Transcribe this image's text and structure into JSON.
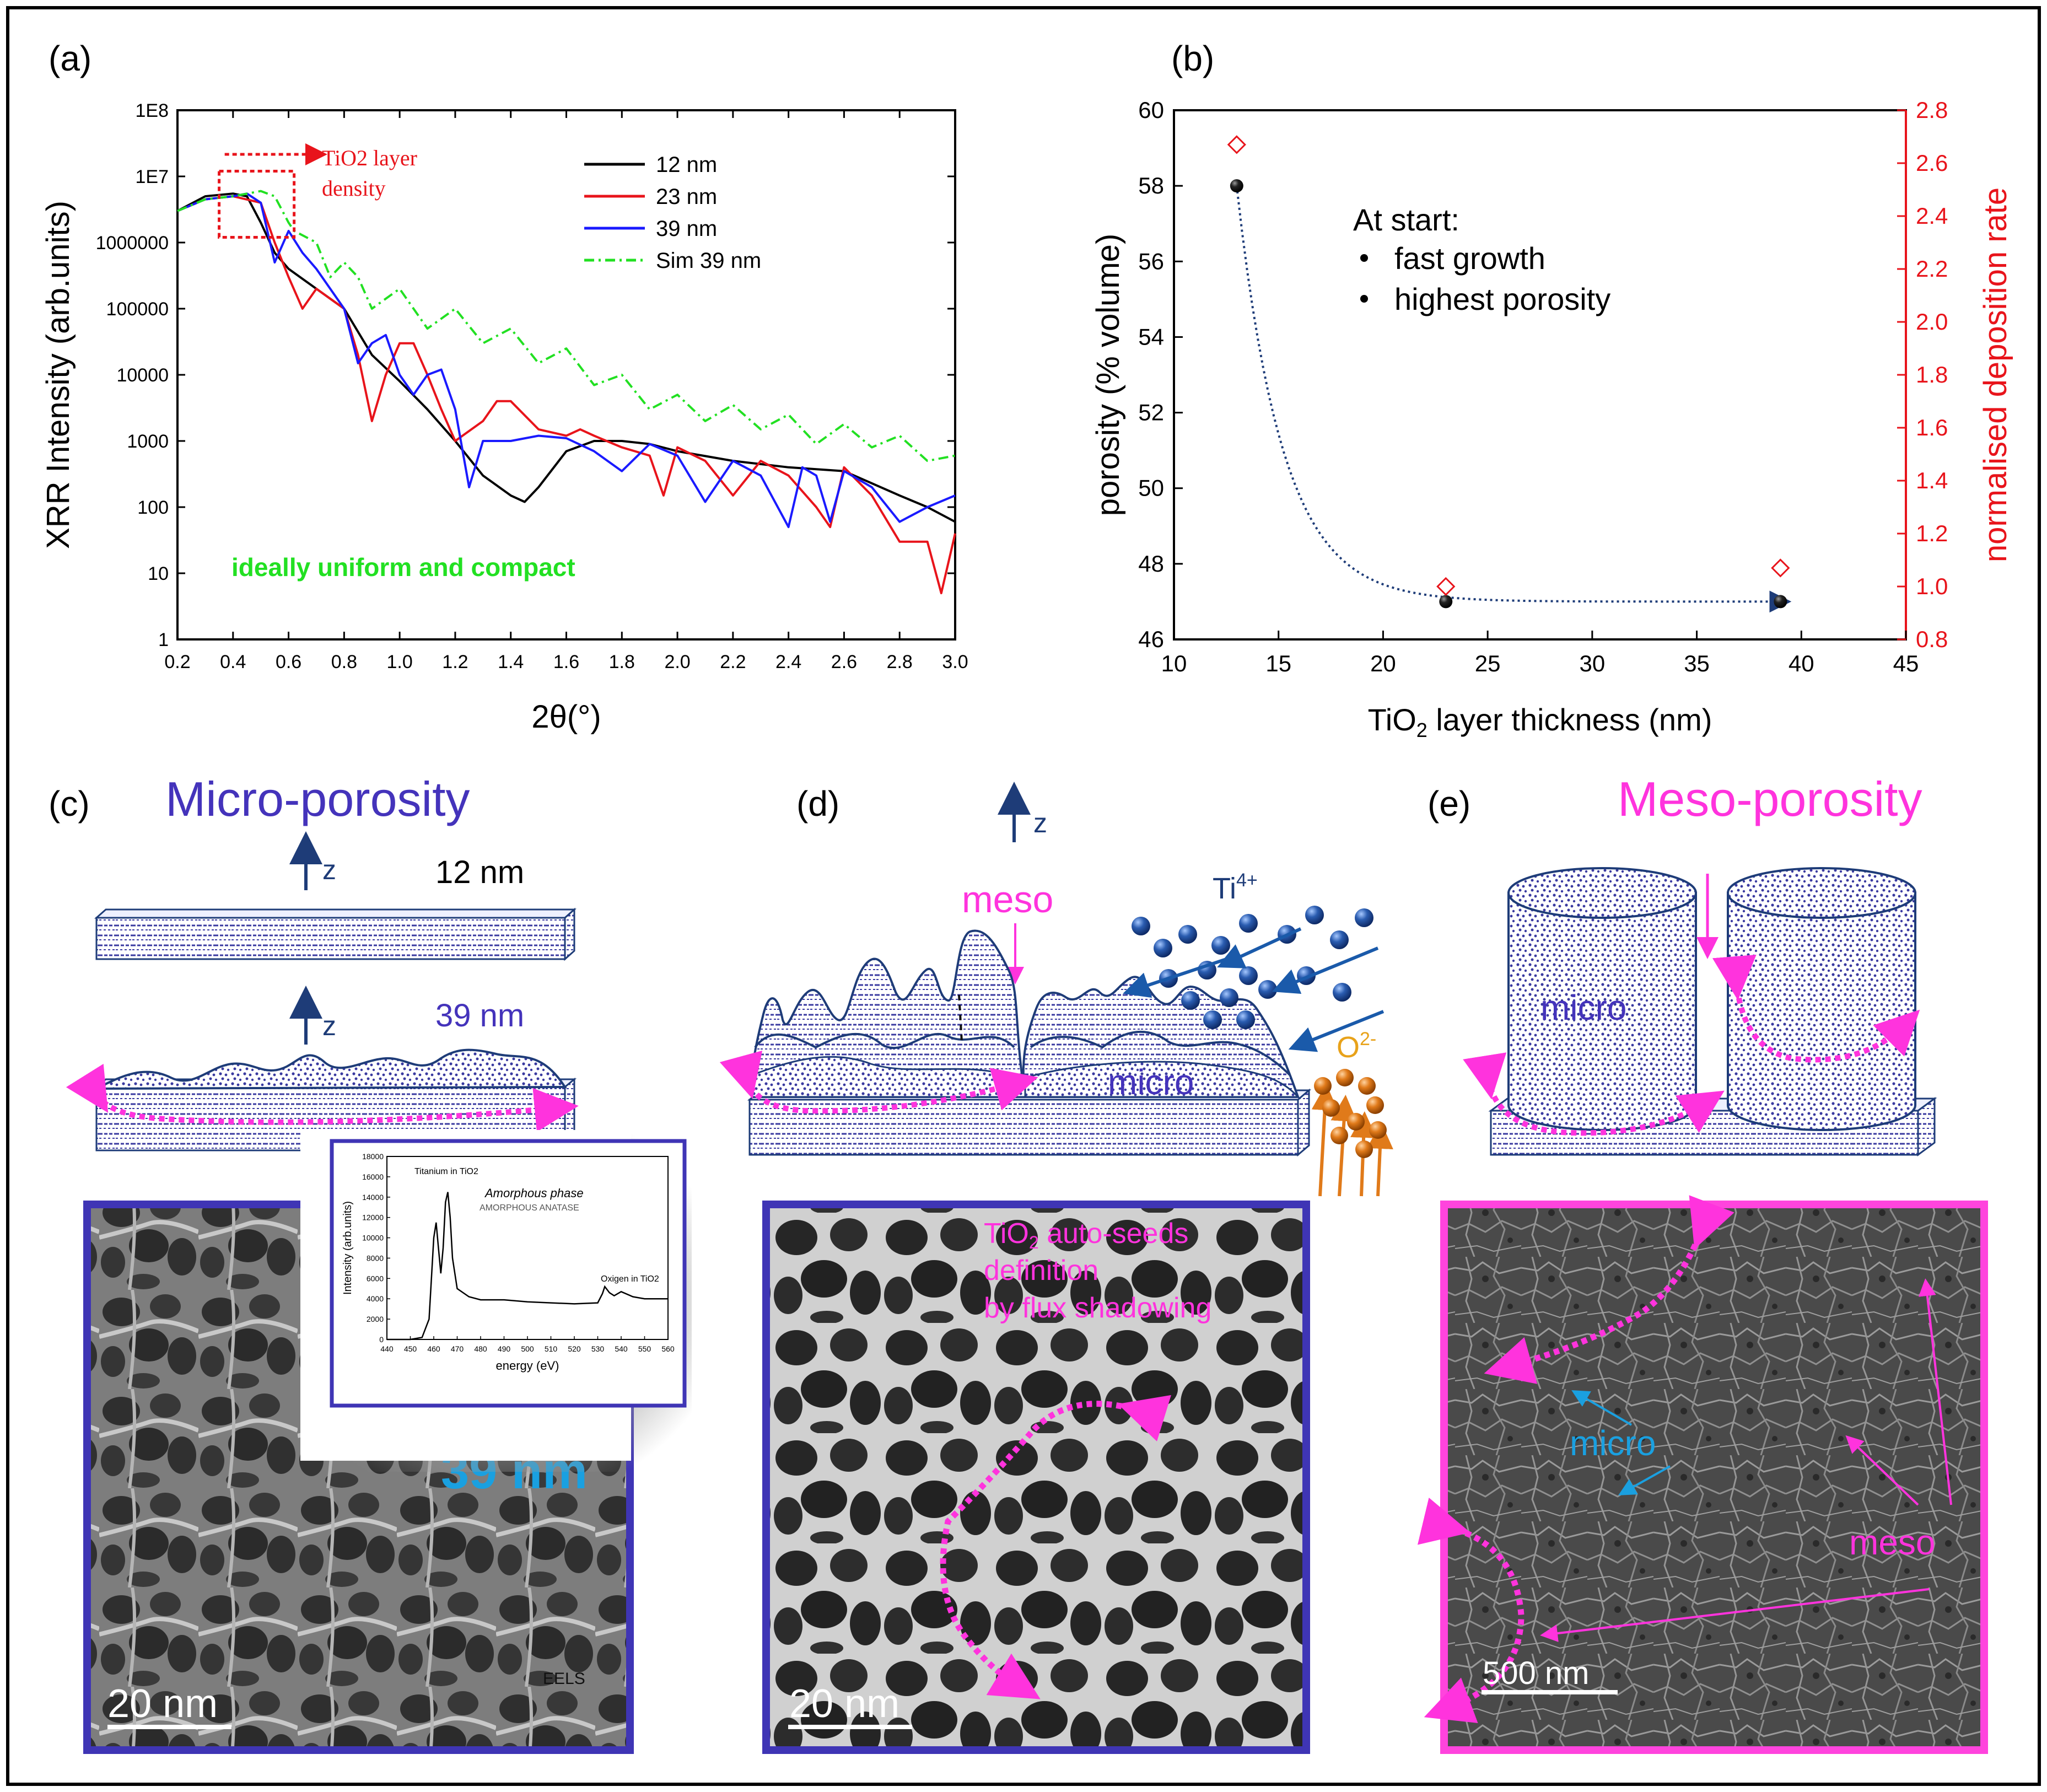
{
  "panel_labels": {
    "a": "(a)",
    "b": "(b)",
    "c": "(c)",
    "d": "(d)",
    "e": "(e)"
  },
  "colors": {
    "black": "#000000",
    "red": "#e8141b",
    "blue": "#1a1aff",
    "green": "#22e022",
    "purple": "#4433bb",
    "magenta": "#ff33dd",
    "navy": "#1e3c78",
    "cyan": "#1aa0e0",
    "orange": "#e07a1a"
  },
  "chart_data": [
    {
      "type": "line",
      "panel": "(a)",
      "xlabel": "2θ(°)",
      "ylabel": "XRR Intensity (arb.units)",
      "xlim": [
        0.2,
        3.0
      ],
      "ylim_log10": [
        0,
        8
      ],
      "x_ticks": [
        "0.2",
        "0.4",
        "0.6",
        "0.8",
        "1.0",
        "1.2",
        "1.4",
        "1.6",
        "1.8",
        "2.0",
        "2.2",
        "2.4",
        "2.6",
        "2.8",
        "3.0"
      ],
      "y_ticks": [
        "1",
        "10",
        "100",
        "1000",
        "10000",
        "100000",
        "1000000",
        "1E7",
        "1E8"
      ],
      "legend_position": "top-right",
      "annotation_box": "TiO2 layer density",
      "annotation_text": "ideally uniform and compact",
      "series": [
        {
          "name": "12 nm",
          "color": "#000000",
          "style": "solid",
          "x": [
            0.2,
            0.3,
            0.4,
            0.45,
            0.5,
            0.55,
            0.6,
            0.7,
            0.8,
            0.9,
            1.0,
            1.1,
            1.2,
            1.3,
            1.4,
            1.45,
            1.5,
            1.6,
            1.7,
            1.8,
            1.9,
            2.0,
            2.2,
            2.4,
            2.6,
            2.8,
            2.9,
            3.0
          ],
          "y": [
            3000000,
            5000000,
            5500000,
            5000000,
            2000000,
            700000,
            400000,
            200000,
            100000,
            20000,
            8000,
            3000,
            1000,
            300,
            150,
            120,
            200,
            700,
            1000,
            1000,
            900,
            700,
            500,
            400,
            350,
            150,
            100,
            60
          ]
        },
        {
          "name": "23 nm",
          "color": "#e8141b",
          "style": "solid",
          "x": [
            0.2,
            0.3,
            0.4,
            0.5,
            0.55,
            0.6,
            0.65,
            0.7,
            0.8,
            0.85,
            0.9,
            0.95,
            1.0,
            1.05,
            1.1,
            1.15,
            1.2,
            1.3,
            1.35,
            1.4,
            1.5,
            1.6,
            1.65,
            1.7,
            1.8,
            1.9,
            1.95,
            2.0,
            2.1,
            2.2,
            2.3,
            2.4,
            2.5,
            2.55,
            2.6,
            2.7,
            2.8,
            2.9,
            2.95,
            3.0
          ],
          "y": [
            3000000,
            4500000,
            5000000,
            4000000,
            1000000,
            300000,
            100000,
            200000,
            100000,
            20000,
            2000,
            10000,
            30000,
            30000,
            10000,
            3000,
            1000,
            2000,
            4000,
            4000,
            1500,
            1200,
            1500,
            1200,
            800,
            600,
            150,
            800,
            500,
            150,
            500,
            300,
            100,
            50,
            400,
            150,
            30,
            30,
            5,
            40
          ]
        },
        {
          "name": "39 nm",
          "color": "#1a1aff",
          "style": "solid",
          "x": [
            0.2,
            0.3,
            0.4,
            0.45,
            0.5,
            0.55,
            0.6,
            0.65,
            0.7,
            0.8,
            0.85,
            0.9,
            0.95,
            1.0,
            1.05,
            1.1,
            1.15,
            1.2,
            1.25,
            1.3,
            1.4,
            1.5,
            1.6,
            1.7,
            1.8,
            1.9,
            2.0,
            2.1,
            2.2,
            2.3,
            2.4,
            2.45,
            2.5,
            2.55,
            2.6,
            2.7,
            2.8,
            2.9,
            3.0
          ],
          "y": [
            3000000,
            4500000,
            5000000,
            5500000,
            4000000,
            500000,
            1500000,
            700000,
            400000,
            100000,
            15000,
            30000,
            40000,
            10000,
            5000,
            10000,
            12000,
            3000,
            200,
            1000,
            1000,
            1200,
            1100,
            700,
            350,
            900,
            600,
            120,
            500,
            300,
            50,
            400,
            300,
            60,
            350,
            200,
            60,
            100,
            150
          ]
        },
        {
          "name": "Sim 39 nm",
          "color": "#22e022",
          "style": "dash-dot",
          "x": [
            0.2,
            0.3,
            0.4,
            0.5,
            0.55,
            0.6,
            0.62,
            0.7,
            0.75,
            0.8,
            0.85,
            0.9,
            1.0,
            1.1,
            1.2,
            1.3,
            1.4,
            1.5,
            1.6,
            1.7,
            1.8,
            1.9,
            2.0,
            2.1,
            2.2,
            2.3,
            2.4,
            2.5,
            2.6,
            2.7,
            2.8,
            2.9,
            3.0
          ],
          "y": [
            3000000,
            4500000,
            5000000,
            6000000,
            5000000,
            2000000,
            1500000,
            1000000,
            300000,
            500000,
            300000,
            100000,
            200000,
            50000,
            100000,
            30000,
            50000,
            15000,
            25000,
            7000,
            10000,
            3000,
            5000,
            2000,
            3500,
            1500,
            2500,
            900,
            1800,
            800,
            1200,
            500,
            600
          ]
        }
      ]
    },
    {
      "type": "scatter",
      "panel": "(b)",
      "xlabel": "TiO2 layer thickness (nm)",
      "ylabel": "porosity (% volume)",
      "y2label": "normalised deposition rate",
      "xlim": [
        10,
        45
      ],
      "ylim": [
        46,
        60
      ],
      "y2lim": [
        0.8,
        2.8
      ],
      "x_ticks": [
        "10",
        "15",
        "20",
        "25",
        "30",
        "35",
        "40",
        "45"
      ],
      "y_ticks": [
        "46",
        "48",
        "50",
        "52",
        "54",
        "56",
        "58",
        "60"
      ],
      "y2_ticks": [
        "0.8",
        "1.0",
        "1.2",
        "1.4",
        "1.6",
        "1.8",
        "2.0",
        "2.2",
        "2.4",
        "2.6",
        "2.8"
      ],
      "series": [
        {
          "name": "porosity",
          "axis": "left",
          "marker": "black-sphere",
          "x": [
            13,
            23,
            39
          ],
          "y": [
            58,
            47,
            47
          ]
        },
        {
          "name": "normalised deposition rate",
          "axis": "right",
          "marker": "red-open-diamond",
          "x": [
            13,
            23,
            39
          ],
          "y": [
            2.67,
            1.0,
            1.07
          ]
        }
      ],
      "annotations": [
        "At start:",
        "fast growth",
        "highest porosity"
      ]
    }
  ],
  "panel_c": {
    "title": "Micro-porosity",
    "z_label": "z",
    "thickness_top": "12 nm",
    "thickness_bottom": "39 nm",
    "scale_bar": "20 nm",
    "hidden_label": "39 nm",
    "eels_label": "EELS"
  },
  "eels_inset": {
    "ylabel": "Intensity (arb.units)",
    "xlabel": "energy (eV)",
    "title1": "Titanium in TiO2",
    "title2": "Amorphous phase",
    "title3": "AMORPHOUS ANATASE",
    "label_oxygen": "Oxigen in TiO2",
    "x_ticks": [
      "440",
      "450",
      "460",
      "470",
      "480",
      "490",
      "500",
      "510",
      "520",
      "530",
      "540",
      "550",
      "560"
    ],
    "y_ticks": [
      "0",
      "2000",
      "4000",
      "6000",
      "8000",
      "10000",
      "12000",
      "14000",
      "16000",
      "18000"
    ],
    "spectrum": {
      "energy": [
        440,
        450,
        455,
        458,
        460,
        461,
        462,
        463,
        464,
        465,
        466,
        467,
        468,
        470,
        475,
        480,
        490,
        500,
        510,
        520,
        530,
        532,
        533,
        535,
        537,
        540,
        545,
        550,
        560
      ],
      "counts": [
        0,
        0,
        200,
        2000,
        10000,
        11500,
        9000,
        6500,
        9000,
        13500,
        14500,
        12000,
        8000,
        5000,
        4200,
        3900,
        3900,
        3700,
        3600,
        3500,
        3600,
        4500,
        5200,
        4600,
        4300,
        4700,
        4200,
        4000,
        4000
      ]
    }
  },
  "panel_d": {
    "z_label": "z",
    "meso_label": "meso",
    "ion_ti": "Ti",
    "ion_ti_charge": "4+",
    "ion_o": "O",
    "ion_o_charge": "2-",
    "micro_label": "micro",
    "caption_line1": "TiO",
    "caption_sub": "2",
    "caption_line1_rest": " auto-seeds",
    "caption_line2": "definition",
    "caption_line3": "by flux shadowing",
    "scale_bar": "20 nm"
  },
  "panel_e": {
    "title": "Meso-porosity",
    "micro_label": "micro",
    "micro_label_sem": "micro",
    "meso_label_sem": "meso",
    "scale_bar": "500  nm"
  }
}
